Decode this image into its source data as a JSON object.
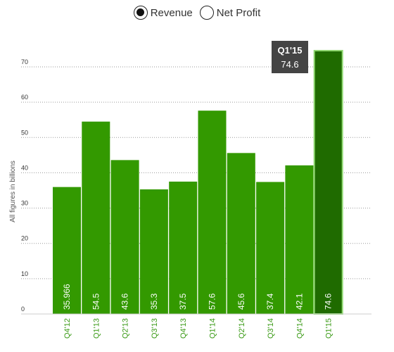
{
  "legend": {
    "items": [
      {
        "label": "Revenue",
        "selected": true
      },
      {
        "label": "Net Profit",
        "selected": false
      }
    ]
  },
  "tooltip": {
    "title": "Q1'15",
    "value": "74.6"
  },
  "colors": {
    "bar": "#339900",
    "highlight": "#1f6b00",
    "highlight_border": "#8fd870",
    "tooltip_bg": "#444444"
  },
  "chart_data": {
    "type": "bar",
    "ylabel": "All figures in billions",
    "ylim": [
      0,
      70
    ],
    "yticks": [
      0,
      10,
      20,
      30,
      40,
      50,
      60,
      70
    ],
    "categories": [
      "Q4'12",
      "Q1'13",
      "Q2'13",
      "Q3'13",
      "Q4'13",
      "Q1'14",
      "Q2'14",
      "Q3'14",
      "Q4'14",
      "Q1'15"
    ],
    "values": [
      35.966,
      54.5,
      43.6,
      35.3,
      37.5,
      57.6,
      45.6,
      37.4,
      42.1,
      74.6
    ],
    "data_labels": [
      "35.966",
      "54.5",
      "43.6",
      "35.3",
      "37.5",
      "57.6",
      "45.6",
      "37.4",
      "42.1",
      "74.6"
    ],
    "highlighted_index": 9,
    "grid": true,
    "legend_position": "top-center"
  }
}
